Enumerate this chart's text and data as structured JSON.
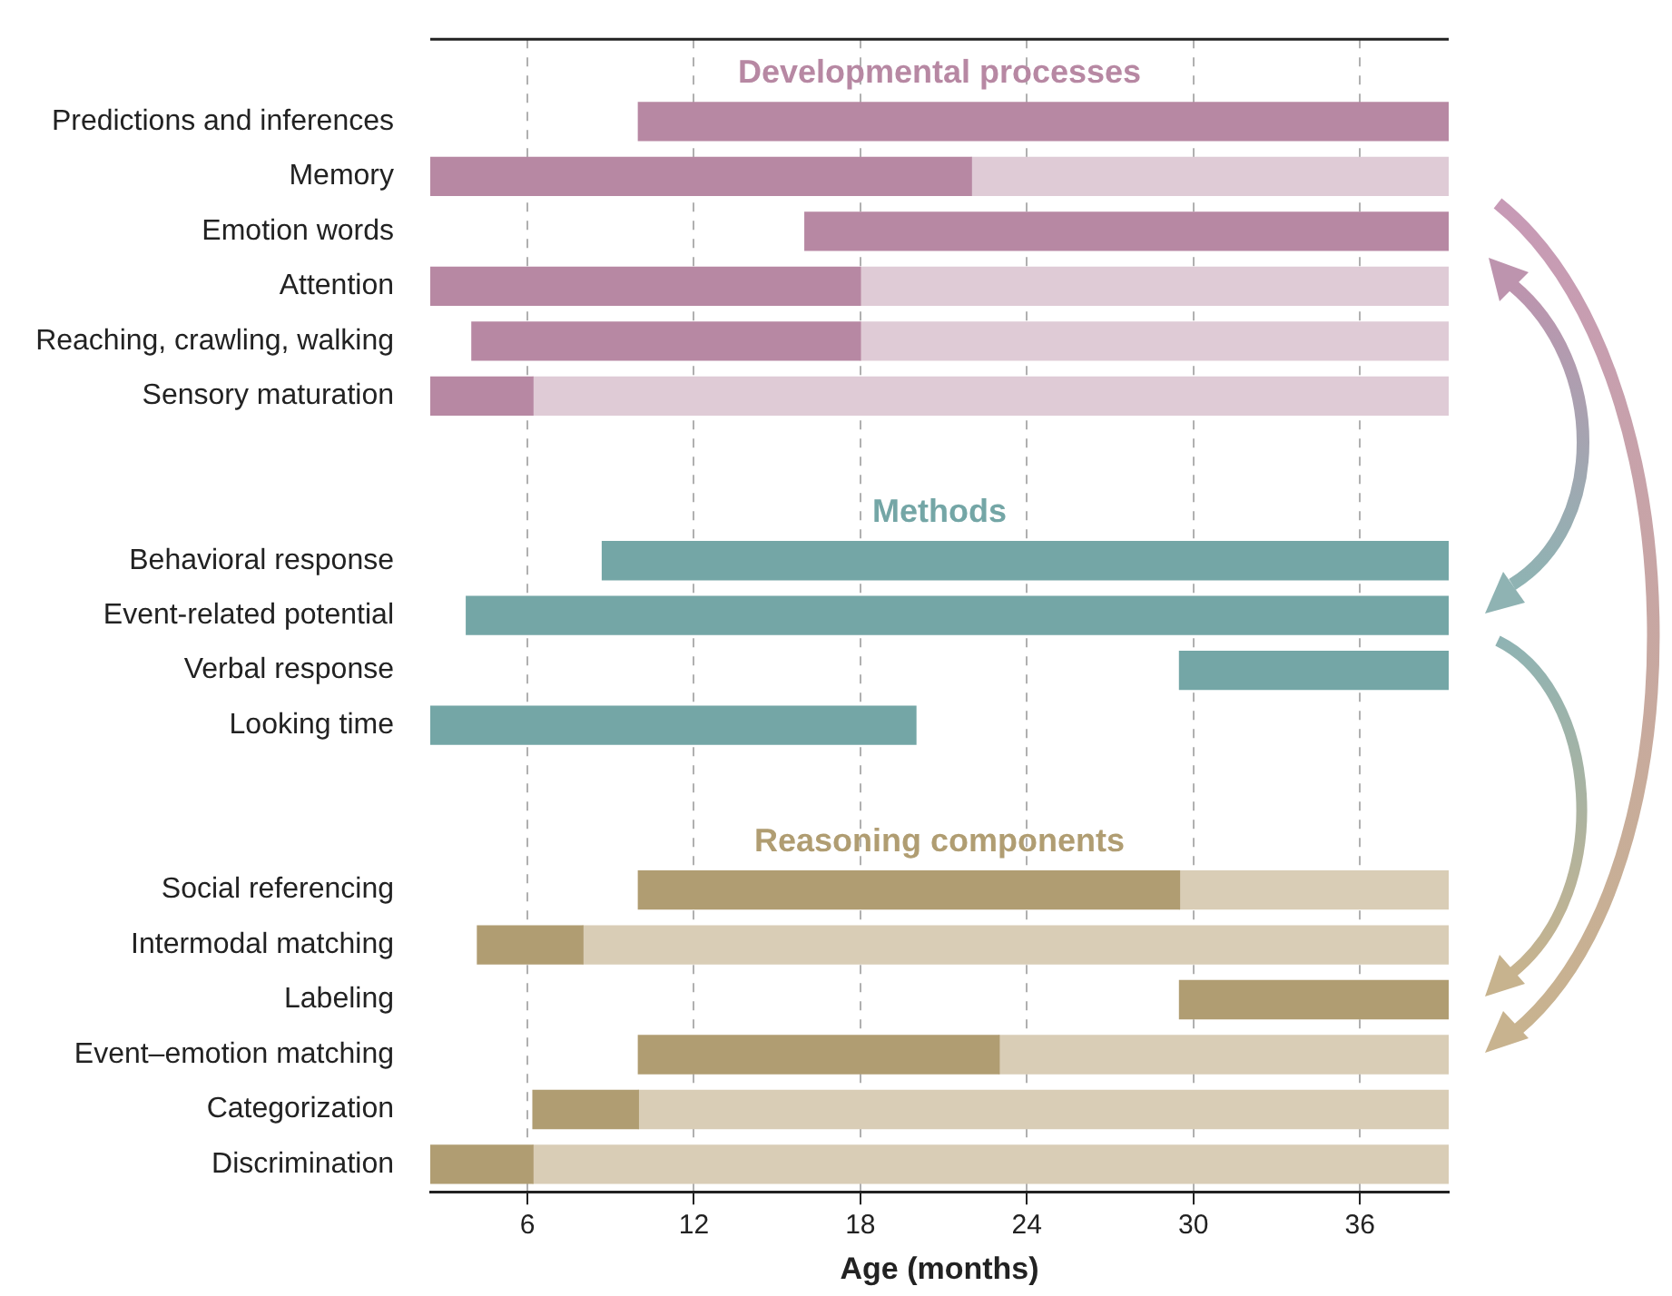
{
  "chart_data": {
    "type": "bar",
    "orientation": "horizontal",
    "xlabel": "Age (months)",
    "categories": [
      null,
      "Predictions and inferences",
      "Memory",
      "Emotion words",
      "Attention",
      "Reaching, crawling, walking",
      "Sensory maturation",
      null,
      null,
      "Behavioral response",
      "Event-related potential",
      "Verbal response",
      "Looking time",
      null,
      null,
      "Social referencing",
      "Intermodal matching",
      "Labeling",
      "Event–emotion matching",
      "Categorization",
      "Discrimination"
    ],
    "series": [
      {
        "colors": [
          null,
          "#b788a3",
          "#b788a3",
          "#b788a3",
          "#b788a3",
          "#b788a3",
          "#b788a3",
          null,
          null,
          "#74a6a6",
          "#74a6a6",
          "#74a6a6",
          "#74a6a6",
          null,
          null,
          "#b09d72",
          "#b09d72",
          "#b09d72",
          "#b09d72",
          "#b09d72",
          "#b09d72"
        ],
        "base": [
          null,
          10,
          2.5,
          16,
          2.5,
          4,
          2.5,
          null,
          null,
          8.7,
          3.8,
          29.5,
          2.5,
          null,
          null,
          10,
          4.2,
          29.5,
          10,
          6.2,
          2.5
        ],
        "values": [
          null,
          29.2,
          19.5,
          23.2,
          15.5,
          14,
          3.7,
          null,
          null,
          30.5,
          35.4,
          9.7,
          17.5,
          null,
          null,
          19.5,
          3.8,
          9.7,
          13,
          3.8,
          3.7
        ]
      },
      {
        "colors": [
          null,
          null,
          "#dfcbd6",
          null,
          "#dfcbd6",
          "#dfcbd6",
          "#dfcbd6",
          null,
          null,
          null,
          null,
          null,
          null,
          null,
          null,
          "#d9cdb6",
          "#d9cdb6",
          null,
          "#d9cdb6",
          "#d9cdb6",
          "#d9cdb6"
        ],
        "base": [
          null,
          null,
          22,
          null,
          18,
          18,
          6.2,
          null,
          null,
          null,
          null,
          null,
          null,
          null,
          null,
          29.5,
          8,
          null,
          23,
          10,
          6.2
        ],
        "values": [
          null,
          null,
          17.2,
          null,
          21.2,
          21.2,
          33,
          null,
          null,
          null,
          null,
          null,
          null,
          null,
          null,
          9.7,
          31.2,
          null,
          16.2,
          29.2,
          33
        ]
      }
    ],
    "xlim": [
      2.5,
      39.2
    ],
    "xticks": [
      6,
      12,
      18,
      24,
      30,
      36
    ],
    "grid": "x",
    "legend": false,
    "annotations": [
      "Developmental processes",
      "Methods",
      "Reasoning components"
    ]
  }
}
